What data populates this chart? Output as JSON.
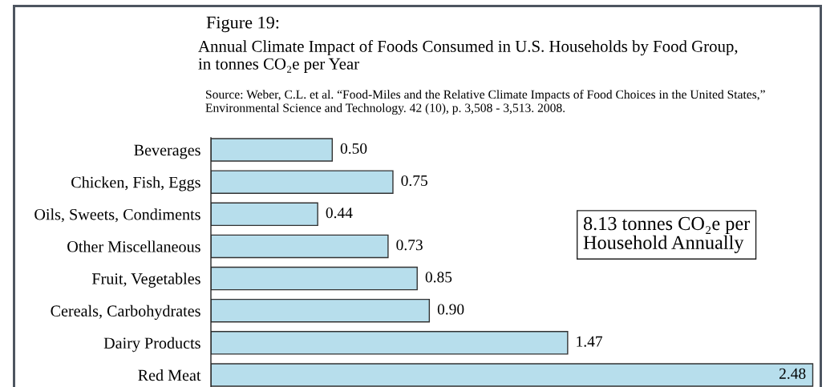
{
  "chart_data": {
    "type": "bar",
    "orientation": "horizontal",
    "title": "Figure 19:",
    "subtitle": "Annual Climate Impact of Foods Consumed in U.S. Households by Food Group,\nin tonnes CO₂e per Year",
    "categories": [
      "Beverages",
      "Chicken, Fish, Eggs",
      "Oils, Sweets, Condiments",
      "Other Miscellaneous",
      "Fruit, Vegetables",
      "Cereals, Carbohydrates",
      "Dairy Products",
      "Red Meat"
    ],
    "values": [
      0.5,
      0.75,
      0.44,
      0.73,
      0.85,
      0.9,
      1.47,
      2.48
    ],
    "value_labels": [
      "0.50",
      "0.75",
      "0.44",
      "0.73",
      "0.85",
      "0.90",
      "1.47",
      "2.48"
    ],
    "color": "#b7deec",
    "tick_labels": "y",
    "grid": false,
    "legend": false,
    "annotations": [
      "Source: Weber, C.L. et al. “Food-Miles and the Relative Climate Impacts of Food Choices in the United States,”\nEnvironmental Science and Technology. 42 (10), p. 3,508 - 3,513. 2008.",
      "8.13 tonnes CO₂e per\nHousehold Annually"
    ]
  }
}
